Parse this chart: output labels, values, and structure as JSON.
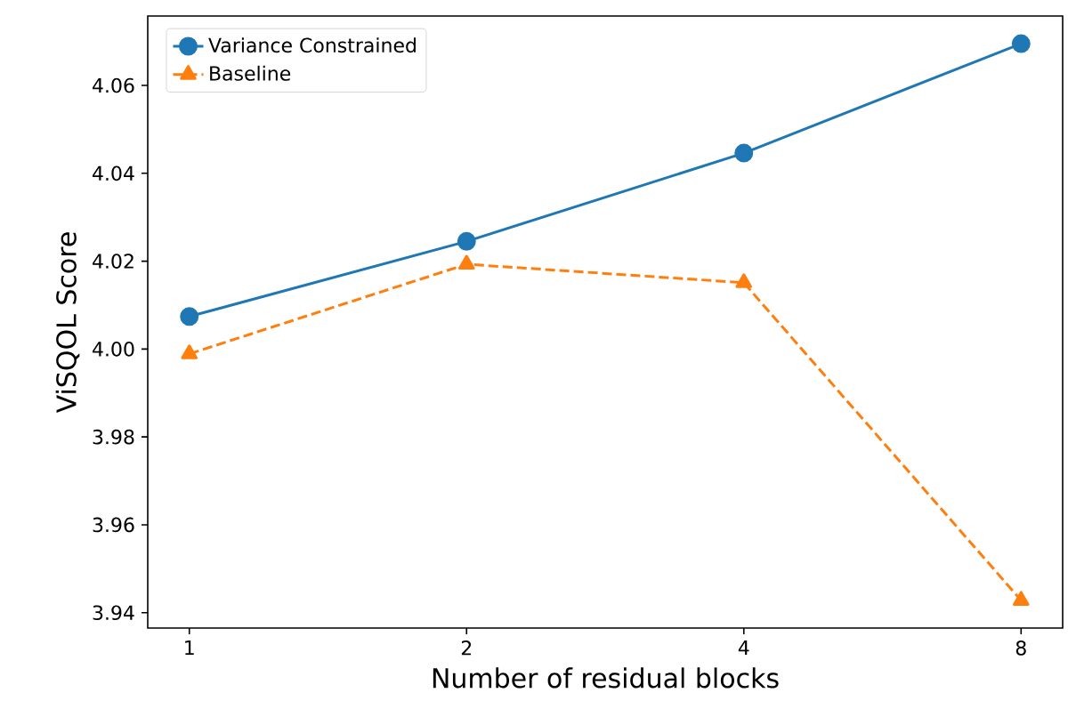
{
  "chart_data": {
    "type": "line",
    "xlabel": "Number of residual blocks",
    "ylabel": "ViSQOL Score",
    "categories": [
      "1",
      "2",
      "4",
      "8"
    ],
    "series": [
      {
        "name": "Variance Constrained",
        "color": "#1f77b4",
        "marker": "circle",
        "line_style": "solid",
        "values": [
          4.0074,
          4.0245,
          4.0446,
          4.0695
        ]
      },
      {
        "name": "Baseline",
        "color": "#ff7f0e",
        "marker": "triangle",
        "line_style": "dashed",
        "values": [
          3.9989,
          4.0193,
          4.0151,
          3.9428
        ]
      }
    ],
    "ylim": [
      3.9365,
      4.0758
    ],
    "yticks": [
      3.94,
      3.96,
      3.98,
      {
        "value": 4.0,
        "label": "4.00"
      },
      4.02,
      4.04,
      4.06
    ],
    "grid": false,
    "legend": "top left"
  }
}
